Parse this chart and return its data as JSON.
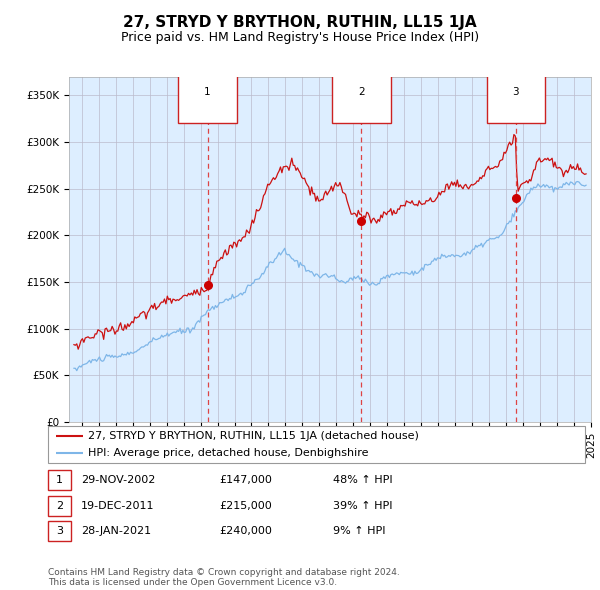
{
  "title": "27, STRYD Y BRYTHON, RUTHIN, LL15 1JA",
  "subtitle": "Price paid vs. HM Land Registry's House Price Index (HPI)",
  "legend_line1": "27, STRYD Y BRYTHON, RUTHIN, LL15 1JA (detached house)",
  "legend_line2": "HPI: Average price, detached house, Denbighshire",
  "transactions": [
    {
      "num": "1",
      "date": "29-NOV-2002",
      "price": "£147,000",
      "pct": "48% ↑ HPI"
    },
    {
      "num": "2",
      "date": "19-DEC-2011",
      "price": "£215,000",
      "pct": "39% ↑ HPI"
    },
    {
      "num": "3",
      "date": "28-JAN-2021",
      "price": "£240,000",
      "pct": "9% ↑ HPI"
    }
  ],
  "transaction_dates_decimal": [
    2002.913,
    2011.963,
    2021.077
  ],
  "transaction_prices": [
    147000,
    215000,
    240000
  ],
  "ylim": [
    0,
    370000
  ],
  "yticks": [
    0,
    50000,
    100000,
    150000,
    200000,
    250000,
    300000,
    350000
  ],
  "ytick_labels": [
    "£0",
    "£50K",
    "£100K",
    "£150K",
    "£200K",
    "£250K",
    "£300K",
    "£350K"
  ],
  "xlim_start": 1994.75,
  "xlim_end": 2025.5,
  "hpi_color": "#7eb6e8",
  "price_color": "#cc1111",
  "dot_color": "#cc0000",
  "vline_color": "#dd4444",
  "bg_color": "#ddeeff",
  "grid_color": "#bbbbcc",
  "footer": "Contains HM Land Registry data © Crown copyright and database right 2024.\nThis data is licensed under the Open Government Licence v3.0.",
  "title_fontsize": 11,
  "subtitle_fontsize": 9,
  "tick_fontsize": 7.5,
  "legend_fontsize": 8,
  "table_fontsize": 8,
  "footer_fontsize": 6.5
}
